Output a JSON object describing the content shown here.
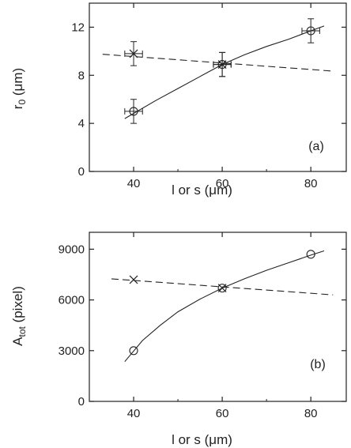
{
  "chart_data": [
    {
      "type": "scatter",
      "panel_label": "(a)",
      "xlabel": "l or s (μm)",
      "ylabel_main": "r",
      "ylabel_sub": "0",
      "ylabel_unit": " (μm)",
      "xlim": [
        30,
        88
      ],
      "ylim": [
        0,
        14
      ],
      "xticks": [
        40,
        60,
        80
      ],
      "yticks": [
        0,
        4,
        8,
        12
      ],
      "series": [
        {
          "marker": "circle",
          "points": [
            {
              "x": 40,
              "y": 5.0,
              "xerr": 2,
              "yerr": 1.0
            },
            {
              "x": 60,
              "y": 8.9,
              "xerr": 2,
              "yerr": 1.0
            },
            {
              "x": 80,
              "y": 11.7,
              "xerr": 2,
              "yerr": 1.0
            }
          ],
          "fit": {
            "style": "solid",
            "x": [
              38,
              45,
              50,
              55,
              60,
              65,
              70,
              75,
              80,
              83
            ],
            "y": [
              4.4,
              5.9,
              6.9,
              7.9,
              8.9,
              9.7,
              10.4,
              11.0,
              11.7,
              12.1
            ]
          }
        },
        {
          "marker": "cross",
          "points": [
            {
              "x": 40,
              "y": 9.8,
              "xerr": 2,
              "yerr": 1.0
            },
            {
              "x": 60,
              "y": 8.9,
              "xerr": 2,
              "yerr": 1.0
            }
          ],
          "fit": {
            "style": "dashed",
            "x": [
              33,
              85
            ],
            "y": [
              9.75,
              8.35
            ]
          }
        }
      ]
    },
    {
      "type": "scatter",
      "panel_label": "(b)",
      "xlabel": "l or s (μm)",
      "ylabel_main": "A",
      "ylabel_sub": "tot",
      "ylabel_unit": " (pixel)",
      "xlim": [
        30,
        88
      ],
      "ylim": [
        0,
        10000
      ],
      "xticks": [
        40,
        60,
        80
      ],
      "yticks": [
        0,
        3000,
        6000,
        9000
      ],
      "series": [
        {
          "marker": "circle",
          "points": [
            {
              "x": 40,
              "y": 3000
            },
            {
              "x": 60,
              "y": 6700
            },
            {
              "x": 80,
              "y": 8700
            }
          ],
          "fit": {
            "style": "solid",
            "x": [
              38,
              42,
              46,
              50,
              55,
              60,
              65,
              70,
              75,
              80,
              83
            ],
            "y": [
              2350,
              3600,
              4500,
              5300,
              6050,
              6700,
              7250,
              7750,
              8200,
              8650,
              8900
            ]
          }
        },
        {
          "marker": "cross",
          "points": [
            {
              "x": 40,
              "y": 7200
            },
            {
              "x": 60,
              "y": 6700
            }
          ],
          "fit": {
            "style": "dashed",
            "x": [
              35,
              85
            ],
            "y": [
              7250,
              6300
            ]
          }
        }
      ]
    }
  ]
}
